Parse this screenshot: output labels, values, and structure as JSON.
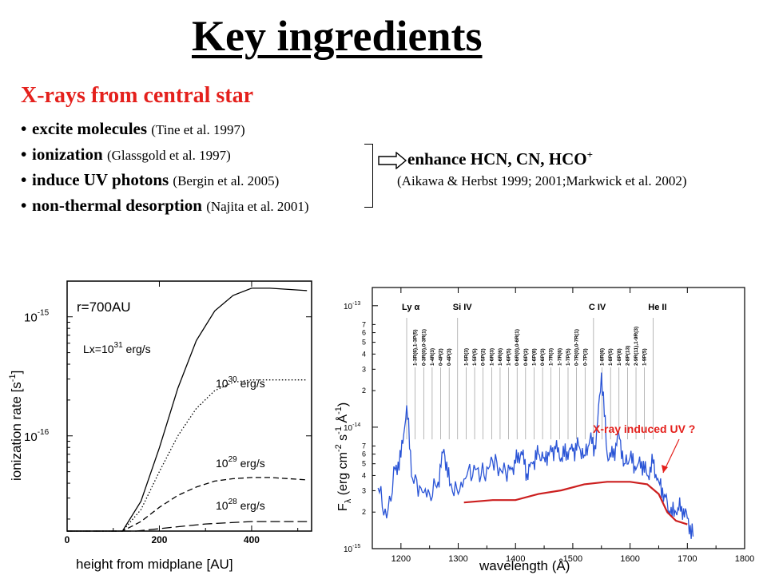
{
  "slide": {
    "title": "Key ingredients",
    "subtitle": "X-rays from central star",
    "bullets": [
      {
        "main": "excite molecules",
        "ref": "(Tine et al. 1997)"
      },
      {
        "main": "ionization",
        "ref": "(Glassgold et al. 1997)"
      },
      {
        "main": "induce UV photons",
        "ref": "(Bergin et al. 2005)"
      },
      {
        "main": "non-thermal desorption",
        "ref": "(Najita et al. 2001)"
      }
    ],
    "result": {
      "text": "enhance HCN, CN, HCO",
      "superscript": "+",
      "ref": "(Aikawa & Herbst 1999; 2001;Markwick et al. 2002)"
    }
  },
  "chart_data": [
    {
      "type": "line",
      "title": "r=700AU",
      "xlabel": "height from midplane [AU]",
      "ylabel": "ionization rate [s-1]",
      "ylabel_parts": {
        "base": "ionization rate [s",
        "sup": "-1",
        "end": "]"
      },
      "xlim": [
        0,
        530
      ],
      "ylim_log10": [
        -16.8,
        -14.7
      ],
      "y_scale": "log",
      "x_ticks": [
        "0",
        "200",
        "400"
      ],
      "y_ticks": [
        {
          "base": "10",
          "exp": "-15"
        },
        {
          "base": "10",
          "exp": "-16"
        }
      ],
      "series": [
        {
          "name": "Lx=1031 erg/s",
          "label_base": "Lx=10",
          "label_exp": "31",
          "label_unit": " erg/s",
          "style": "solid",
          "x": [
            0,
            120,
            160,
            200,
            240,
            280,
            320,
            360,
            400,
            440,
            480,
            520
          ],
          "y": [
            -16.8,
            -16.8,
            -16.55,
            -16.1,
            -15.6,
            -15.2,
            -14.95,
            -14.82,
            -14.76,
            -14.76,
            -14.77,
            -14.78
          ]
        },
        {
          "name": "1030 erg/s",
          "label_base": "10",
          "label_exp": "30",
          "label_unit": " erg/s",
          "style": "dotted",
          "x": [
            0,
            120,
            160,
            200,
            240,
            280,
            320,
            360,
            400,
            440,
            480,
            520
          ],
          "y": [
            -16.8,
            -16.8,
            -16.62,
            -16.3,
            -16.0,
            -15.77,
            -15.62,
            -15.55,
            -15.53,
            -15.53,
            -15.53,
            -15.53
          ]
        },
        {
          "name": "1029 erg/s",
          "label_base": "10",
          "label_exp": "29",
          "label_unit": " erg/s",
          "style": "dashed",
          "x": [
            0,
            120,
            160,
            200,
            240,
            280,
            320,
            360,
            400,
            440,
            480,
            520
          ],
          "y": [
            -16.8,
            -16.8,
            -16.72,
            -16.6,
            -16.5,
            -16.43,
            -16.38,
            -16.36,
            -16.35,
            -16.35,
            -16.36,
            -16.37
          ]
        },
        {
          "name": "1028 erg/s",
          "label_base": "10",
          "label_exp": "28",
          "label_unit": " erg/s",
          "style": "longdash",
          "x": [
            0,
            150,
            200,
            250,
            300,
            350,
            400,
            450,
            520
          ],
          "y": [
            -16.8,
            -16.8,
            -16.78,
            -16.76,
            -16.74,
            -16.73,
            -16.72,
            -16.72,
            -16.72
          ]
        }
      ]
    },
    {
      "type": "line",
      "xlabel": "wavelength (Å)",
      "ylabel_parts": {
        "pre": "F",
        "sub": "λ",
        "mid1": " (erg cm",
        "sup1": "-2",
        "mid2": " s",
        "sup2": "-1",
        "mid3": " Å",
        "sup3": "-1",
        "end": ")"
      },
      "xlim": [
        1150,
        1800
      ],
      "ylim_log10": [
        -15,
        -12.85
      ],
      "y_scale": "log",
      "x_ticks": [
        "1200",
        "1300",
        "1400",
        "1500",
        "1600",
        "1700",
        "1800"
      ],
      "y_ticks_major": [
        {
          "base": "10",
          "exp": "-13"
        },
        {
          "base": "10",
          "exp": "-14"
        },
        {
          "base": "10",
          "exp": "-15"
        }
      ],
      "y_ticks_minor": [
        "7",
        "6",
        "5",
        "4",
        "3",
        "2"
      ],
      "annotation": "X-ray induced UV ?",
      "colors": {
        "spectrum": "#2b55d6",
        "model": "#cc1f1f",
        "annotation": "#e4201c"
      },
      "line_ids": [
        "Ly α",
        "1-3R(6),1-3P(5)",
        "0-3R(0),0-3R(1)",
        "1-4R(3)",
        "0-4P(2)",
        "0-4P(3)",
        "Si IV",
        "1-5R(3)",
        "1-5P(5)",
        "0-5P(2)",
        "1-6R(3)",
        "1-6R(6)",
        "1-6P(5)",
        "0-6R(0),0-6R(1)",
        "0-6P(2)",
        "1-6P(8)",
        "0-6P(3)",
        "1-7R(3)",
        "1-7R(6)",
        "1-7P(5)",
        "0-7R(0),0-7R(1)",
        "0-7P(3)",
        "C IV",
        "1-8R(6)",
        "1-8P(5)",
        "1-8P(8)",
        "2-8P(13)",
        "2-9R(11),1-9R(3)",
        "1-9P(5)",
        "He II"
      ],
      "series": [
        {
          "name": "spectrum",
          "x": [
            1160,
            1175,
            1190,
            1200,
            1210,
            1220,
            1235,
            1250,
            1265,
            1275,
            1285,
            1300,
            1315,
            1330,
            1345,
            1360,
            1375,
            1390,
            1400,
            1410,
            1420,
            1430,
            1440,
            1450,
            1460,
            1470,
            1480,
            1490,
            1500,
            1510,
            1520,
            1530,
            1540,
            1550,
            1560,
            1570,
            1580,
            1590,
            1600,
            1610,
            1620,
            1630,
            1640,
            1650,
            1660,
            1670,
            1680,
            1690,
            1700,
            1710
          ],
          "y": [
            -14.5,
            -14.75,
            -14.35,
            -14.25,
            -13.82,
            -14.42,
            -14.5,
            -14.55,
            -14.45,
            -14.18,
            -14.48,
            -14.55,
            -14.4,
            -14.35,
            -14.4,
            -14.28,
            -14.36,
            -14.35,
            -14.3,
            -14.2,
            -14.38,
            -14.3,
            -14.22,
            -14.25,
            -14.2,
            -14.18,
            -14.25,
            -14.2,
            -14.2,
            -14.15,
            -14.23,
            -14.1,
            -14.18,
            -13.55,
            -14.22,
            -14.25,
            -14.05,
            -14.3,
            -14.25,
            -14.35,
            -14.28,
            -14.4,
            -14.3,
            -14.45,
            -14.55,
            -14.72,
            -14.7,
            -14.65,
            -14.75,
            -14.9
          ]
        },
        {
          "name": "X-ray induced UV",
          "x": [
            1310,
            1360,
            1400,
            1440,
            1480,
            1520,
            1560,
            1600,
            1630,
            1650,
            1665,
            1680,
            1700
          ],
          "y": [
            -14.62,
            -14.6,
            -14.6,
            -14.55,
            -14.52,
            -14.47,
            -14.45,
            -14.45,
            -14.47,
            -14.55,
            -14.7,
            -14.77,
            -14.8
          ]
        }
      ]
    }
  ]
}
